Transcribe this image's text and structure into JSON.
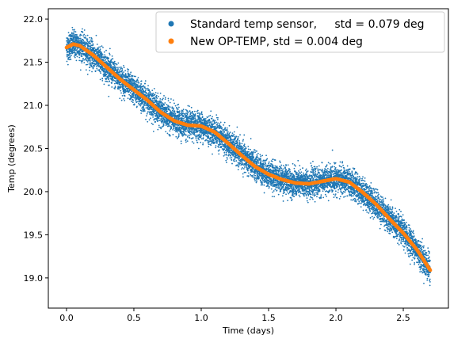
{
  "chart_data": {
    "type": "scatter",
    "xlabel": "Time (days)",
    "ylabel": "Temp (degrees)",
    "xlim": [
      -0.135,
      2.835
    ],
    "ylim": [
      18.65,
      22.12
    ],
    "xticks": [
      {
        "value": 0.0,
        "label": "0.0"
      },
      {
        "value": 0.5,
        "label": "0.5"
      },
      {
        "value": 1.0,
        "label": "1.0"
      },
      {
        "value": 1.5,
        "label": "1.5"
      },
      {
        "value": 2.0,
        "label": "2.0"
      },
      {
        "value": 2.5,
        "label": "2.5"
      }
    ],
    "yticks": [
      {
        "value": 19.0,
        "label": "19.0"
      },
      {
        "value": 19.5,
        "label": "19.5"
      },
      {
        "value": 20.0,
        "label": "20.0"
      },
      {
        "value": 20.5,
        "label": "20.5"
      },
      {
        "value": 21.0,
        "label": "21.0"
      },
      {
        "value": 21.5,
        "label": "21.5"
      },
      {
        "value": 22.0,
        "label": "22.0"
      }
    ],
    "grid": false,
    "legend_position": "top-right",
    "series": [
      {
        "name": "Standard temp sensor,     std = 0.079 deg",
        "color": "#1f77b4",
        "marker": "dot",
        "spread": 0.079,
        "x": [
          0.0,
          0.05,
          0.1,
          0.2,
          0.3,
          0.4,
          0.5,
          0.6,
          0.7,
          0.8,
          0.9,
          1.0,
          1.1,
          1.2,
          1.3,
          1.4,
          1.5,
          1.6,
          1.7,
          1.8,
          1.9,
          2.0,
          2.1,
          2.2,
          2.3,
          2.4,
          2.5,
          2.6,
          2.7
        ],
        "y": [
          21.67,
          21.71,
          21.69,
          21.58,
          21.44,
          21.3,
          21.18,
          21.06,
          20.92,
          20.82,
          20.77,
          20.76,
          20.69,
          20.56,
          20.42,
          20.29,
          20.2,
          20.14,
          20.1,
          20.09,
          20.12,
          20.15,
          20.11,
          19.99,
          19.85,
          19.68,
          19.52,
          19.33,
          19.09
        ]
      },
      {
        "name": "New OP-TEMP, std = 0.004 deg",
        "color": "#ff7f0e",
        "marker": "dot",
        "x": [
          0.0,
          0.05,
          0.1,
          0.2,
          0.3,
          0.4,
          0.5,
          0.6,
          0.7,
          0.8,
          0.9,
          1.0,
          1.1,
          1.2,
          1.3,
          1.4,
          1.5,
          1.6,
          1.7,
          1.8,
          1.9,
          2.0,
          2.1,
          2.2,
          2.3,
          2.4,
          2.5,
          2.6,
          2.7
        ],
        "y": [
          21.67,
          21.71,
          21.69,
          21.58,
          21.44,
          21.3,
          21.18,
          21.06,
          20.92,
          20.82,
          20.77,
          20.76,
          20.69,
          20.56,
          20.42,
          20.29,
          20.2,
          20.14,
          20.1,
          20.09,
          20.12,
          20.15,
          20.11,
          19.99,
          19.85,
          19.68,
          19.52,
          19.33,
          19.09
        ]
      }
    ]
  }
}
